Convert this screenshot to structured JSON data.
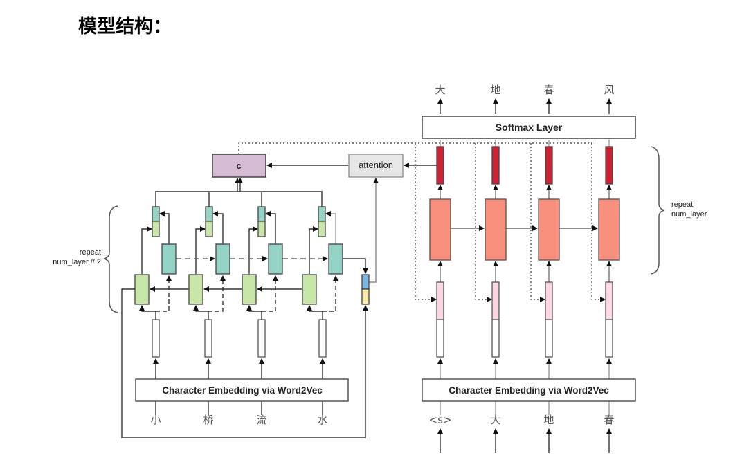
{
  "title": "模型结构：",
  "encoder": {
    "embedding_label": "Character Embedding via Word2Vec",
    "inputs": [
      "小",
      "桥",
      "流",
      "水"
    ],
    "repeat_label_line1": "repeat",
    "repeat_label_line2": "num_layer // 2"
  },
  "context_label": "c",
  "attention_label": "attention",
  "decoder": {
    "softmax_label": "Softmax Layer",
    "embedding_label": "Character Embedding via Word2Vec",
    "inputs": [
      "<s>",
      "大",
      "地",
      "春"
    ],
    "outputs": [
      "大",
      "地",
      "春",
      "风"
    ],
    "repeat_label_line1": "repeat",
    "repeat_label_line2": "num_layer"
  },
  "colors": {
    "forward_rnn": "#c8e6a8",
    "backward_rnn": "#92d3c6",
    "context": "#d6bcd4",
    "attention": "#e6e6e6",
    "decoder_rnn": "#f98f7d",
    "decoder_output": "#cc2233",
    "decoder_input": "#fbd6e2",
    "state_top": "#7eb6e0",
    "state_bottom": "#fbe9a6"
  }
}
